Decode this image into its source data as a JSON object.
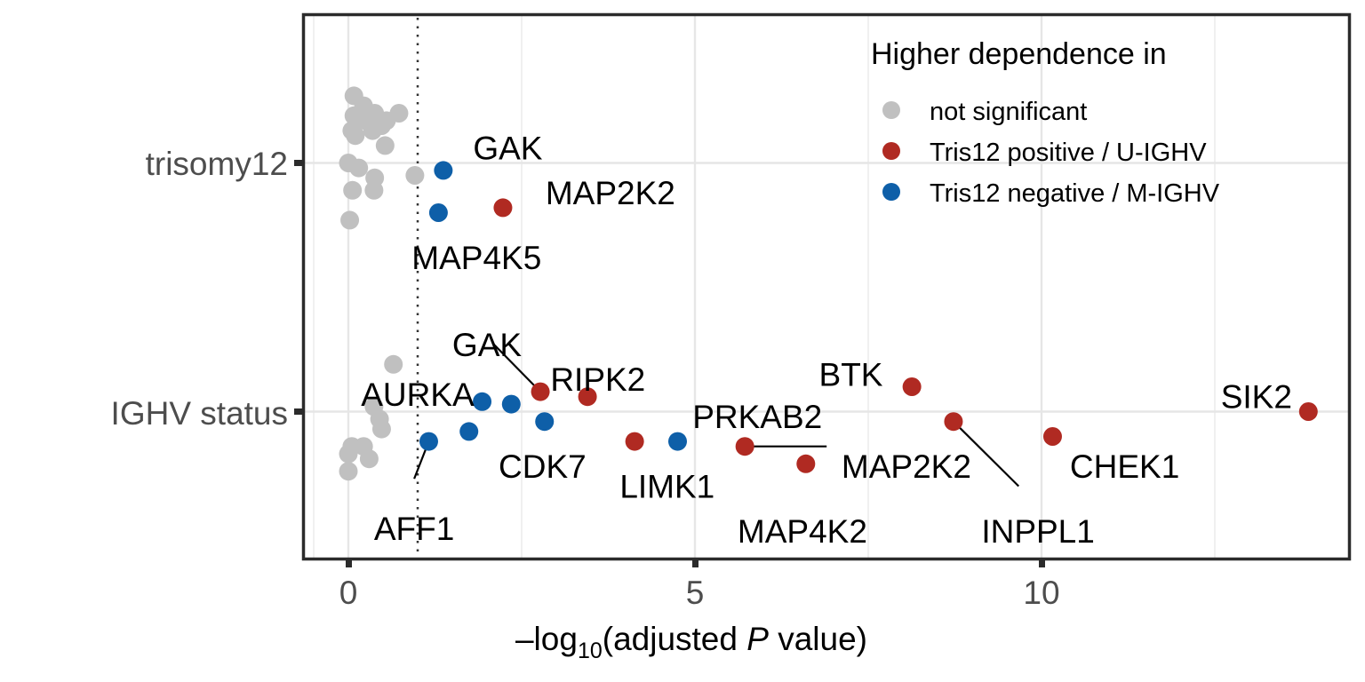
{
  "chart_data": {
    "type": "scatter",
    "title": "",
    "xlabel": "-log10(adjusted P value)",
    "xlabel_parts": {
      "prefix": "–log",
      "subscript": "10",
      "open": "(adjusted ",
      "italic": "P",
      "suffix": " value)"
    },
    "ylabel": "",
    "xlim": [
      -0.6,
      14.2
    ],
    "x_ticks": [
      0,
      5,
      10
    ],
    "x_tick_labels": [
      "0",
      "5",
      "10"
    ],
    "categories": [
      "trisomy12",
      "IGHV status"
    ],
    "threshold_x": 1,
    "grid": true,
    "legend": {
      "title": "Higher dependence in",
      "placement": "top-right",
      "entries": [
        {
          "key": "ns",
          "label": "not significant",
          "color": "#c0c0c0"
        },
        {
          "key": "pos",
          "label": "Tris12 positive / U-IGHV",
          "color": "#b02a22"
        },
        {
          "key": "neg",
          "label": "Tris12 negative / M-IGHV",
          "color": "#0e5fa8"
        }
      ]
    },
    "colors": {
      "ns": "#c0c0c0",
      "pos": "#b02a22",
      "neg": "#0e5fa8",
      "frame": "#2b2b2b",
      "grid": "#e6e6e6"
    },
    "points": [
      {
        "cat": "trisomy12",
        "x": 0.08,
        "jitter": 0.27,
        "group": "ns"
      },
      {
        "cat": "trisomy12",
        "x": 0.22,
        "jitter": 0.23,
        "group": "ns"
      },
      {
        "cat": "trisomy12",
        "x": 0.08,
        "jitter": 0.19,
        "group": "ns"
      },
      {
        "cat": "trisomy12",
        "x": 0.38,
        "jitter": 0.2,
        "group": "ns"
      },
      {
        "cat": "trisomy12",
        "x": 0.25,
        "jitter": 0.17,
        "group": "ns"
      },
      {
        "cat": "trisomy12",
        "x": 0.55,
        "jitter": 0.17,
        "group": "ns"
      },
      {
        "cat": "trisomy12",
        "x": 0.73,
        "jitter": 0.2,
        "group": "ns"
      },
      {
        "cat": "trisomy12",
        "x": 0.05,
        "jitter": 0.13,
        "group": "ns"
      },
      {
        "cat": "trisomy12",
        "x": 0.35,
        "jitter": 0.13,
        "group": "ns"
      },
      {
        "cat": "trisomy12",
        "x": 0.48,
        "jitter": 0.15,
        "group": "ns"
      },
      {
        "cat": "trisomy12",
        "x": 0.1,
        "jitter": 0.11,
        "group": "ns"
      },
      {
        "cat": "trisomy12",
        "x": 0.53,
        "jitter": 0.07,
        "group": "ns"
      },
      {
        "cat": "trisomy12",
        "x": 0.0,
        "jitter": 0.0,
        "group": "ns"
      },
      {
        "cat": "trisomy12",
        "x": 0.15,
        "jitter": -0.02,
        "group": "ns"
      },
      {
        "cat": "trisomy12",
        "x": 0.38,
        "jitter": -0.06,
        "group": "ns"
      },
      {
        "cat": "trisomy12",
        "x": 0.06,
        "jitter": -0.11,
        "group": "ns"
      },
      {
        "cat": "trisomy12",
        "x": 0.37,
        "jitter": -0.11,
        "group": "ns"
      },
      {
        "cat": "trisomy12",
        "x": 0.02,
        "jitter": -0.23,
        "group": "ns"
      },
      {
        "cat": "trisomy12",
        "x": 0.96,
        "jitter": -0.05,
        "group": "ns"
      },
      {
        "cat": "trisomy12",
        "x": 1.37,
        "jitter": -0.03,
        "group": "neg",
        "label": "GAK"
      },
      {
        "cat": "trisomy12",
        "x": 2.23,
        "jitter": -0.18,
        "group": "pos",
        "label": "MAP2K2"
      },
      {
        "cat": "trisomy12",
        "x": 1.3,
        "jitter": -0.2,
        "group": "neg",
        "label": "MAP4K5"
      },
      {
        "cat": "IGHV status",
        "x": 0.65,
        "jitter": 0.19,
        "group": "ns"
      },
      {
        "cat": "IGHV status",
        "x": 0.37,
        "jitter": 0.02,
        "group": "ns"
      },
      {
        "cat": "IGHV status",
        "x": 0.45,
        "jitter": -0.03,
        "group": "ns"
      },
      {
        "cat": "IGHV status",
        "x": 0.48,
        "jitter": -0.07,
        "group": "ns"
      },
      {
        "cat": "IGHV status",
        "x": 0.05,
        "jitter": -0.14,
        "group": "ns"
      },
      {
        "cat": "IGHV status",
        "x": 0.22,
        "jitter": -0.14,
        "group": "ns"
      },
      {
        "cat": "IGHV status",
        "x": 0.0,
        "jitter": -0.17,
        "group": "ns"
      },
      {
        "cat": "IGHV status",
        "x": 0.3,
        "jitter": -0.19,
        "group": "ns"
      },
      {
        "cat": "IGHV status",
        "x": 0.0,
        "jitter": -0.24,
        "group": "ns"
      },
      {
        "cat": "IGHV status",
        "x": 1.16,
        "jitter": -0.12,
        "group": "neg",
        "label": "AFF1"
      },
      {
        "cat": "IGHV status",
        "x": 1.93,
        "jitter": 0.04,
        "group": "neg",
        "label": "AURKA"
      },
      {
        "cat": "IGHV status",
        "x": 2.35,
        "jitter": 0.03,
        "group": "neg"
      },
      {
        "cat": "IGHV status",
        "x": 1.74,
        "jitter": -0.08,
        "group": "neg"
      },
      {
        "cat": "IGHV status",
        "x": 2.83,
        "jitter": -0.04,
        "group": "neg",
        "label": "CDK7"
      },
      {
        "cat": "IGHV status",
        "x": 2.77,
        "jitter": 0.08,
        "group": "pos",
        "label": "GAK"
      },
      {
        "cat": "IGHV status",
        "x": 3.45,
        "jitter": 0.06,
        "group": "pos",
        "label": "RIPK2"
      },
      {
        "cat": "IGHV status",
        "x": 4.13,
        "jitter": -0.12,
        "group": "pos",
        "label": "LIMK1"
      },
      {
        "cat": "IGHV status",
        "x": 4.75,
        "jitter": -0.12,
        "group": "neg",
        "label": "PRKAB2"
      },
      {
        "cat": "IGHV status",
        "x": 5.72,
        "jitter": -0.14,
        "group": "pos",
        "label": "MAP2K2"
      },
      {
        "cat": "IGHV status",
        "x": 6.6,
        "jitter": -0.21,
        "group": "pos",
        "label": "MAP4K2"
      },
      {
        "cat": "IGHV status",
        "x": 8.13,
        "jitter": 0.1,
        "group": "pos",
        "label": "BTK"
      },
      {
        "cat": "IGHV status",
        "x": 8.73,
        "jitter": -0.04,
        "group": "pos",
        "label": "INPPL1"
      },
      {
        "cat": "IGHV status",
        "x": 10.16,
        "jitter": -0.1,
        "group": "pos",
        "label": "CHEK1"
      },
      {
        "cat": "IGHV status",
        "x": 13.85,
        "jitter": 0.0,
        "group": "pos",
        "label": "SIK2"
      }
    ],
    "labels": [
      {
        "text": "GAK",
        "cat": "trisomy12",
        "x": 2.3,
        "jitter": 0.06,
        "anchor": "middle"
      },
      {
        "text": "MAP2K2",
        "cat": "trisomy12",
        "x": 3.78,
        "jitter": -0.12,
        "anchor": "middle"
      },
      {
        "text": "MAP4K5",
        "cat": "trisomy12",
        "x": 1.85,
        "jitter": -0.38,
        "anchor": "middle"
      },
      {
        "text": "GAK",
        "cat": "IGHV status",
        "x": 2.0,
        "jitter": 0.27,
        "anchor": "middle"
      },
      {
        "text": "RIPK2",
        "cat": "IGHV status",
        "x": 3.6,
        "jitter": 0.13,
        "anchor": "middle"
      },
      {
        "text": "AURKA",
        "cat": "IGHV status",
        "x": 1.0,
        "jitter": 0.07,
        "anchor": "middle"
      },
      {
        "text": "CDK7",
        "cat": "IGHV status",
        "x": 2.8,
        "jitter": -0.22,
        "anchor": "middle"
      },
      {
        "text": "AFF1",
        "cat": "IGHV status",
        "x": 0.95,
        "jitter": -0.47,
        "anchor": "middle"
      },
      {
        "text": "LIMK1",
        "cat": "IGHV status",
        "x": 4.6,
        "jitter": -0.3,
        "anchor": "middle"
      },
      {
        "text": "PRKAB2",
        "cat": "IGHV status",
        "x": 5.9,
        "jitter": -0.02,
        "anchor": "middle"
      },
      {
        "text": "MAP2K2",
        "cat": "IGHV status",
        "x": 8.05,
        "jitter": -0.22,
        "anchor": "middle"
      },
      {
        "text": "MAP4K2",
        "cat": "IGHV status",
        "x": 6.55,
        "jitter": -0.48,
        "anchor": "middle"
      },
      {
        "text": "BTK",
        "cat": "IGHV status",
        "x": 7.25,
        "jitter": 0.15,
        "anchor": "middle"
      },
      {
        "text": "INPPL1",
        "cat": "IGHV status",
        "x": 9.95,
        "jitter": -0.48,
        "anchor": "middle"
      },
      {
        "text": "CHEK1",
        "cat": "IGHV status",
        "x": 11.2,
        "jitter": -0.22,
        "anchor": "middle"
      },
      {
        "text": "SIK2",
        "cat": "IGHV status",
        "x": 13.1,
        "jitter": 0.06,
        "anchor": "middle"
      }
    ],
    "segments": [
      {
        "cat": "IGHV status",
        "x1": 2.1,
        "j1": 0.27,
        "x2": 2.77,
        "j2": 0.08
      },
      {
        "cat": "IGHV status",
        "x1": 1.16,
        "j1": -0.12,
        "x2": 0.95,
        "j2": -0.27
      },
      {
        "cat": "IGHV status",
        "x1": 5.72,
        "j1": -0.14,
        "x2": 6.9,
        "j2": -0.14
      },
      {
        "cat": "IGHV status",
        "x1": 8.73,
        "j1": -0.04,
        "x2": 9.67,
        "j2": -0.3
      }
    ]
  }
}
